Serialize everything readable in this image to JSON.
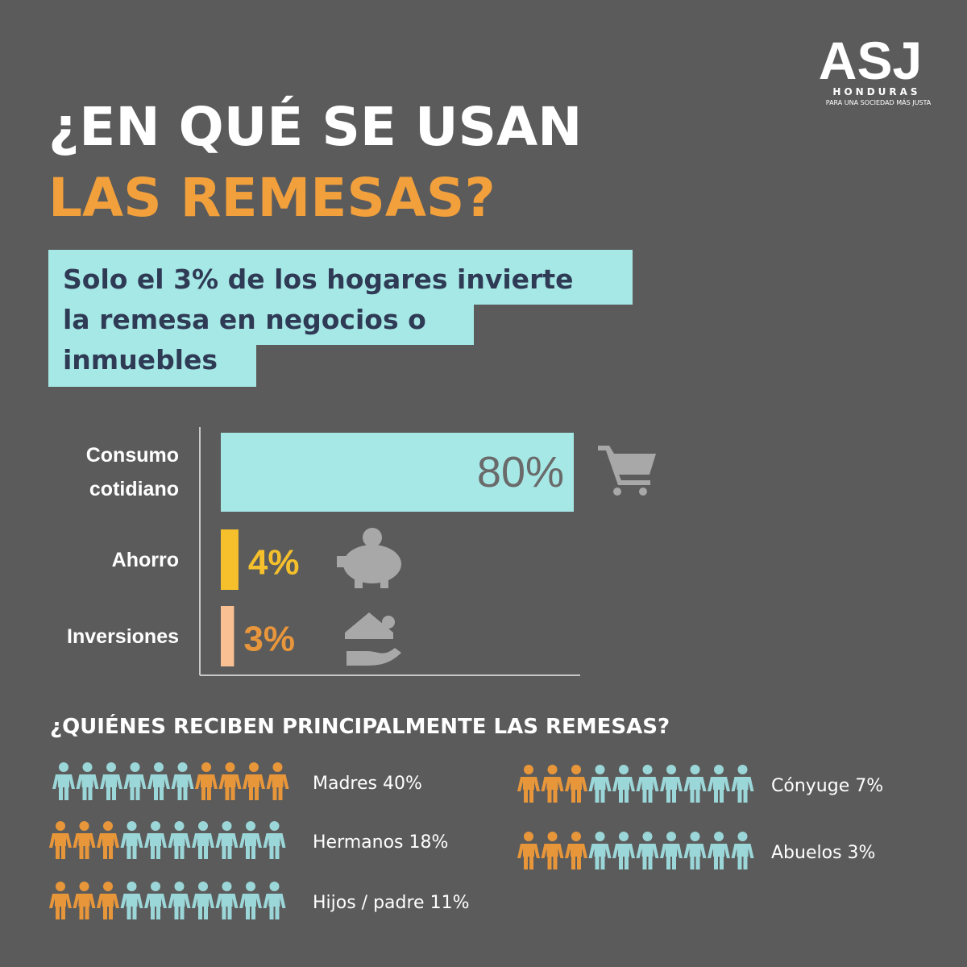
{
  "logo": {
    "name": "ASJ",
    "country": "HONDURAS",
    "tagline": "PARA UNA SOCIEDAD MÁS JUSTA"
  },
  "title": {
    "line1": "¿EN QUÉ SE USAN",
    "line2": "LAS REMESAS?"
  },
  "subtitle": {
    "lines": [
      "Solo el 3% de los hogares invierte",
      "la remesa en negocios o",
      "inmuebles"
    ]
  },
  "chart_data": {
    "type": "bar",
    "orientation": "horizontal",
    "categories": [
      "Consumo cotidiano",
      "Ahorro",
      "Inversiones"
    ],
    "values": [
      80,
      4,
      3
    ],
    "value_labels": [
      "80%",
      "4%",
      "3%"
    ],
    "colors": [
      "#a6e8e6",
      "#f5c02b",
      "#f8c093"
    ],
    "label_colors": [
      "#6a6a6a",
      "#f5c02b",
      "#e8963c"
    ],
    "xlim": [
      0,
      80
    ]
  },
  "recipients": {
    "title": "¿QUIÉNES RECIBEN PRINCIPALMENTE LAS REMESAS?",
    "items": [
      "Madres 40%",
      "Hermanos 18%",
      "Hijos / padre 11%",
      "Cónyuge 7%",
      "Abuelos 3%"
    ]
  }
}
